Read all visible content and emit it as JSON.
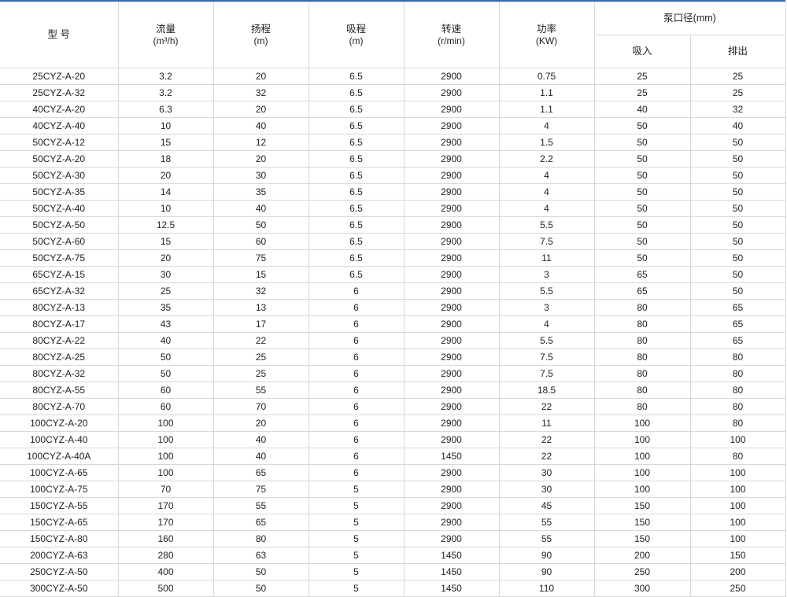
{
  "header": {
    "model": "型 号",
    "flow": {
      "label": "流量",
      "unit": "(m³/h)"
    },
    "head": {
      "label": "扬程",
      "unit": "(m)"
    },
    "suction": {
      "label": "吸程",
      "unit": "(m)"
    },
    "speed": {
      "label": "转速",
      "unit": "(r/min)"
    },
    "power": {
      "label": "功率",
      "unit": "(KW)"
    },
    "diameter": "泵口径(mm)",
    "inlet": "吸入",
    "outlet": "排出"
  },
  "accent_color": "#2f6db3",
  "rows": [
    [
      "25CYZ-A-20",
      "3.2",
      "20",
      "6.5",
      "2900",
      "0.75",
      "25",
      "25"
    ],
    [
      "25CYZ-A-32",
      "3.2",
      "32",
      "6.5",
      "2900",
      "1.1",
      "25",
      "25"
    ],
    [
      "40CYZ-A-20",
      "6.3",
      "20",
      "6.5",
      "2900",
      "1.1",
      "40",
      "32"
    ],
    [
      "40CYZ-A-40",
      "10",
      "40",
      "6.5",
      "2900",
      "4",
      "50",
      "40"
    ],
    [
      "50CYZ-A-12",
      "15",
      "12",
      "6.5",
      "2900",
      "1.5",
      "50",
      "50"
    ],
    [
      "50CYZ-A-20",
      "18",
      "20",
      "6.5",
      "2900",
      "2.2",
      "50",
      "50"
    ],
    [
      "50CYZ-A-30",
      "20",
      "30",
      "6.5",
      "2900",
      "4",
      "50",
      "50"
    ],
    [
      "50CYZ-A-35",
      "14",
      "35",
      "6.5",
      "2900",
      "4",
      "50",
      "50"
    ],
    [
      "50CYZ-A-40",
      "10",
      "40",
      "6.5",
      "2900",
      "4",
      "50",
      "50"
    ],
    [
      "50CYZ-A-50",
      "12.5",
      "50",
      "6.5",
      "2900",
      "5.5",
      "50",
      "50"
    ],
    [
      "50CYZ-A-60",
      "15",
      "60",
      "6.5",
      "2900",
      "7.5",
      "50",
      "50"
    ],
    [
      "50CYZ-A-75",
      "20",
      "75",
      "6.5",
      "2900",
      "11",
      "50",
      "50"
    ],
    [
      "65CYZ-A-15",
      "30",
      "15",
      "6.5",
      "2900",
      "3",
      "65",
      "50"
    ],
    [
      "65CYZ-A-32",
      "25",
      "32",
      "6",
      "2900",
      "5.5",
      "65",
      "50"
    ],
    [
      "80CYZ-A-13",
      "35",
      "13",
      "6",
      "2900",
      "3",
      "80",
      "65"
    ],
    [
      "80CYZ-A-17",
      "43",
      "17",
      "6",
      "2900",
      "4",
      "80",
      "65"
    ],
    [
      "80CYZ-A-22",
      "40",
      "22",
      "6",
      "2900",
      "5.5",
      "80",
      "65"
    ],
    [
      "80CYZ-A-25",
      "50",
      "25",
      "6",
      "2900",
      "7.5",
      "80",
      "80"
    ],
    [
      "80CYZ-A-32",
      "50",
      "25",
      "6",
      "2900",
      "7.5",
      "80",
      "80"
    ],
    [
      "80CYZ-A-55",
      "60",
      "55",
      "6",
      "2900",
      "18.5",
      "80",
      "80"
    ],
    [
      "80CYZ-A-70",
      "60",
      "70",
      "6",
      "2900",
      "22",
      "80",
      "80"
    ],
    [
      "100CYZ-A-20",
      "100",
      "20",
      "6",
      "2900",
      "11",
      "100",
      "80"
    ],
    [
      "100CYZ-A-40",
      "100",
      "40",
      "6",
      "2900",
      "22",
      "100",
      "100"
    ],
    [
      "100CYZ-A-40A",
      "100",
      "40",
      "6",
      "1450",
      "22",
      "100",
      "80"
    ],
    [
      "100CYZ-A-65",
      "100",
      "65",
      "6",
      "2900",
      "30",
      "100",
      "100"
    ],
    [
      "100CYZ-A-75",
      "70",
      "75",
      "5",
      "2900",
      "30",
      "100",
      "100"
    ],
    [
      "150CYZ-A-55",
      "170",
      "55",
      "5",
      "2900",
      "45",
      "150",
      "100"
    ],
    [
      "150CYZ-A-65",
      "170",
      "65",
      "5",
      "2900",
      "55",
      "150",
      "100"
    ],
    [
      "150CYZ-A-80",
      "160",
      "80",
      "5",
      "2900",
      "55",
      "150",
      "100"
    ],
    [
      "200CYZ-A-63",
      "280",
      "63",
      "5",
      "1450",
      "90",
      "200",
      "150"
    ],
    [
      "250CYZ-A-50",
      "400",
      "50",
      "5",
      "1450",
      "90",
      "250",
      "200"
    ],
    [
      "300CYZ-A-50",
      "500",
      "50",
      "5",
      "1450",
      "110",
      "300",
      "250"
    ]
  ]
}
